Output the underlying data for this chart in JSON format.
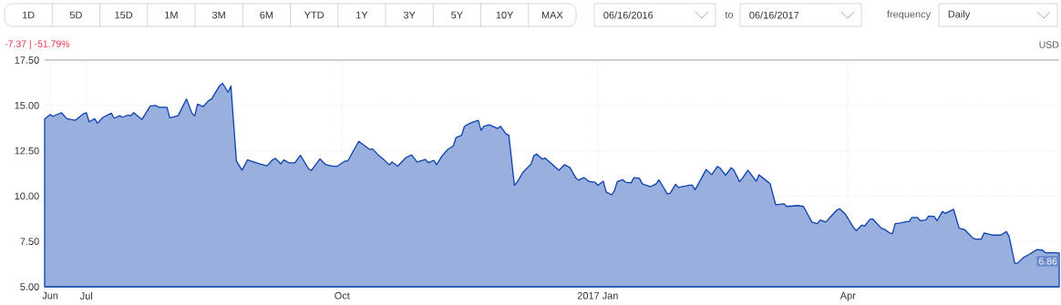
{
  "chart_data": {
    "type": "area",
    "subtitle": "-7.37 | -51.79%",
    "ylabel": "USD",
    "annotations": [
      "1D",
      "5D",
      "15D",
      "1M",
      "3M",
      "6M",
      "YTD",
      "1Y",
      "3Y",
      "5Y",
      "10Y",
      "MAX",
      "06/16/2016",
      "to",
      "06/16/2017",
      "frequency",
      "Daily",
      {
        "text": "6.86",
        "x": "2017-06-16",
        "y": 6.86
      }
    ],
    "x": [
      "2016-06-16",
      "2016-06-18",
      "2016-06-19",
      "2016-06-22",
      "2016-06-24",
      "2016-06-27",
      "2016-06-30",
      "2016-07-01",
      "2016-07-02",
      "2016-07-04",
      "2016-07-05",
      "2016-07-07",
      "2016-07-10",
      "2016-07-11",
      "2016-07-13",
      "2016-07-14",
      "2016-07-16",
      "2016-07-17",
      "2016-07-18",
      "2016-07-21",
      "2016-07-24",
      "2016-07-26",
      "2016-07-27",
      "2016-07-30",
      "2016-07-31",
      "2016-08-03",
      "2016-08-06",
      "2016-08-08",
      "2016-08-09",
      "2016-08-10",
      "2016-08-12",
      "2016-08-14",
      "2016-08-15",
      "2016-08-18",
      "2016-08-19",
      "2016-08-21",
      "2016-08-22",
      "2016-08-24",
      "2016-08-26",
      "2016-08-28",
      "2016-09-01",
      "2016-09-04",
      "2016-09-06",
      "2016-09-07",
      "2016-09-09",
      "2016-09-10",
      "2016-09-12",
      "2016-09-14",
      "2016-09-16",
      "2016-09-19",
      "2016-09-20",
      "2016-09-23",
      "2016-09-25",
      "2016-09-27",
      "2016-09-29",
      "2016-10-02",
      "2016-10-03",
      "2016-10-07",
      "2016-10-11",
      "2016-10-12",
      "2016-10-14",
      "2016-10-16",
      "2016-10-18",
      "2016-10-19",
      "2016-10-21",
      "2016-10-24",
      "2016-10-26",
      "2016-10-28",
      "2016-10-31",
      "2016-11-01",
      "2016-11-03",
      "2016-11-04",
      "2016-11-06",
      "2016-11-08",
      "2016-11-10",
      "2016-11-11",
      "2016-11-13",
      "2016-11-14",
      "2016-11-16",
      "2016-11-19",
      "2016-11-20",
      "2016-11-21",
      "2016-11-23",
      "2016-11-26",
      "2016-11-27",
      "2016-11-29",
      "2016-11-30",
      "2016-12-02",
      "2016-12-03",
      "2016-12-05",
      "2016-12-08",
      "2016-12-09",
      "2016-12-10",
      "2016-12-12",
      "2016-12-13",
      "2016-12-18",
      "2016-12-20",
      "2016-12-22",
      "2016-12-24",
      "2016-12-25",
      "2016-12-27",
      "2016-12-29",
      "2016-12-31",
      "2017-01-01",
      "2017-01-03",
      "2017-01-04",
      "2017-01-06",
      "2017-01-07",
      "2017-01-08",
      "2017-01-10",
      "2017-01-11",
      "2017-01-13",
      "2017-01-14",
      "2017-01-16",
      "2017-01-17",
      "2017-01-20",
      "2017-01-22",
      "2017-01-23",
      "2017-01-26",
      "2017-01-27",
      "2017-01-29",
      "2017-01-30",
      "2017-02-03",
      "2017-02-04",
      "2017-02-05",
      "2017-02-09",
      "2017-02-11",
      "2017-02-13",
      "2017-02-14",
      "2017-02-16",
      "2017-02-18",
      "2017-02-19",
      "2017-02-21",
      "2017-02-22",
      "2017-02-24",
      "2017-02-25",
      "2017-02-27",
      "2017-02-28",
      "2017-03-02",
      "2017-03-04",
      "2017-03-06",
      "2017-03-09",
      "2017-03-10",
      "2017-03-14",
      "2017-03-16",
      "2017-03-19",
      "2017-03-21",
      "2017-03-22",
      "2017-03-24",
      "2017-03-26",
      "2017-03-28",
      "2017-03-29",
      "2017-03-31",
      "2017-04-03",
      "2017-04-04",
      "2017-04-06",
      "2017-04-07",
      "2017-04-09",
      "2017-04-10",
      "2017-04-13",
      "2017-04-14",
      "2017-04-16",
      "2017-04-17",
      "2017-04-18",
      "2017-04-20",
      "2017-04-22",
      "2017-04-23",
      "2017-04-24",
      "2017-04-26",
      "2017-04-27",
      "2017-04-29",
      "2017-04-30",
      "2017-05-02",
      "2017-05-03",
      "2017-05-05",
      "2017-05-06",
      "2017-05-09",
      "2017-05-11",
      "2017-05-13",
      "2017-05-16",
      "2017-05-17",
      "2017-05-19",
      "2017-05-20",
      "2017-05-23",
      "2017-05-26",
      "2017-05-28",
      "2017-05-29",
      "2017-05-31",
      "2017-06-01",
      "2017-06-03",
      "2017-06-05",
      "2017-06-08",
      "2017-06-10",
      "2017-06-11",
      "2017-06-13",
      "2017-06-16"
    ],
    "series": [
      {
        "color": "#0b40ae",
        "values": [
          14.25,
          14.5,
          14.4,
          14.6,
          14.27,
          14.18,
          14.55,
          14.6,
          14.1,
          14.27,
          14.02,
          14.35,
          14.57,
          14.3,
          14.43,
          14.35,
          14.47,
          14.43,
          14.6,
          14.23,
          14.97,
          15.0,
          14.9,
          14.9,
          14.32,
          14.43,
          15.35,
          14.57,
          14.43,
          15.07,
          14.93,
          15.27,
          15.35,
          16.1,
          16.22,
          15.73,
          16.07,
          11.93,
          11.43,
          12.0,
          11.8,
          11.67,
          12.0,
          12.08,
          11.78,
          12.0,
          11.83,
          11.83,
          12.25,
          11.5,
          11.42,
          12.05,
          11.75,
          11.67,
          11.63,
          11.93,
          11.93,
          13.02,
          12.57,
          12.6,
          12.27,
          12.02,
          11.72,
          11.88,
          11.65,
          12.13,
          12.27,
          11.88,
          12.02,
          11.85,
          11.97,
          11.73,
          12.22,
          12.57,
          12.77,
          13.23,
          13.35,
          13.85,
          14.02,
          14.18,
          13.63,
          13.85,
          13.93,
          13.73,
          13.85,
          13.43,
          13.35,
          10.6,
          10.77,
          11.3,
          11.77,
          12.23,
          12.32,
          12.05,
          12.1,
          11.43,
          11.73,
          11.57,
          11.02,
          10.88,
          11.02,
          10.8,
          10.77,
          10.6,
          10.82,
          10.23,
          10.07,
          10.3,
          10.8,
          10.9,
          10.77,
          10.73,
          11.02,
          10.98,
          10.68,
          10.52,
          10.68,
          10.9,
          10.13,
          10.15,
          10.65,
          10.48,
          10.6,
          10.6,
          10.35,
          11.47,
          11.18,
          11.63,
          11.55,
          11.15,
          11.57,
          11.43,
          10.8,
          10.98,
          11.43,
          11.23,
          10.82,
          11.18,
          10.93,
          10.68,
          9.52,
          9.57,
          9.43,
          9.48,
          9.43,
          8.57,
          8.48,
          8.68,
          8.57,
          8.9,
          9.23,
          9.3,
          9.02,
          8.27,
          8.1,
          8.4,
          8.35,
          8.73,
          8.73,
          8.23,
          8.18,
          7.97,
          7.93,
          8.48,
          8.52,
          8.6,
          8.6,
          8.82,
          8.82,
          8.65,
          8.68,
          8.9,
          8.88,
          8.65,
          9.15,
          9.05,
          9.27,
          8.23,
          8.15,
          7.68,
          7.63,
          7.63,
          7.97,
          7.85,
          7.85,
          8.05,
          7.77,
          6.3,
          6.3,
          6.6,
          6.77,
          7.05,
          7.02,
          6.88,
          6.88,
          6.86
        ]
      }
    ],
    "xlim": [
      "2016-06-16",
      "2017-06-16"
    ],
    "xticks": [
      {
        "value": "2016-06-18",
        "label": "Jun"
      },
      {
        "value": "2016-07-01",
        "label": "Jul"
      },
      {
        "value": "2016-10-01",
        "label": "Oct"
      },
      {
        "value": "2017-01-01",
        "label": "2017 Jan"
      },
      {
        "value": "2017-04-01",
        "label": "Apr"
      }
    ],
    "ylim": [
      5,
      17.5
    ],
    "yticks": [
      {
        "value": 5,
        "label": "5.00"
      },
      {
        "value": 7.5,
        "label": "7.50"
      },
      {
        "value": 10,
        "label": "10.00"
      },
      {
        "value": 12.5,
        "label": "12.50"
      },
      {
        "value": 15,
        "label": "15.00"
      },
      {
        "value": 17.5,
        "label": "17.50"
      }
    ],
    "grid": true
  }
}
